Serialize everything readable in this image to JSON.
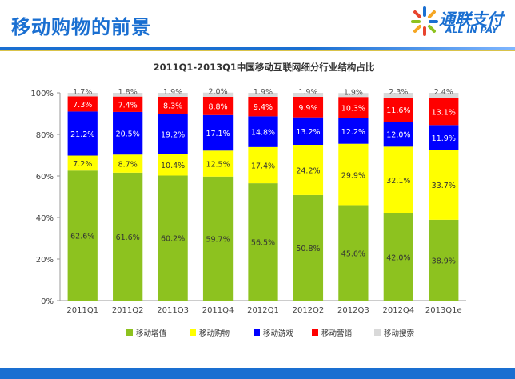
{
  "header": {
    "title": "移动购物的前景",
    "logo_cn": "通联支付",
    "logo_en": "ALL IN PAY"
  },
  "colors": {
    "brand": "#1a6fd1",
    "series": [
      "#8dc21f",
      "#ffff00",
      "#0000ff",
      "#ff0000",
      "#d9d9d9"
    ]
  },
  "chart_data": {
    "type": "bar",
    "stacked": true,
    "title": "2011Q1-2013Q1中国移动互联网细分行业结构占比",
    "categories": [
      "2011Q1",
      "2011Q2",
      "2011Q3",
      "2011Q4",
      "2012Q1",
      "2012Q2",
      "2012Q3",
      "2012Q4",
      "2013Q1e"
    ],
    "series": [
      {
        "name": "移动增值",
        "values": [
          62.6,
          61.6,
          60.2,
          59.7,
          56.5,
          50.8,
          45.6,
          42.0,
          38.9
        ],
        "labels": [
          "62.6%",
          "61.6%",
          "60.2%",
          "59.7%",
          "56.5%",
          "50.8%",
          "45.6%",
          "42.0%",
          "38.9%"
        ]
      },
      {
        "name": "移动购物",
        "values": [
          7.2,
          8.7,
          10.4,
          12.5,
          17.4,
          24.2,
          29.9,
          32.1,
          33.7
        ],
        "labels": [
          "7.2%",
          "8.7%",
          "10.4%",
          "12.5%",
          "17.4%",
          "24.2%",
          "29.9%",
          "32.1%",
          "33.7%"
        ]
      },
      {
        "name": "移动游戏",
        "values": [
          21.2,
          20.5,
          19.2,
          17.1,
          14.8,
          13.2,
          12.2,
          12.0,
          11.9
        ],
        "labels": [
          "21.2%",
          "20.5%",
          "19.2%",
          "17.1%",
          "14.8%",
          "13.2%",
          "12.2%",
          "12.0%",
          "11.9%"
        ]
      },
      {
        "name": "移动营销",
        "values": [
          7.3,
          7.4,
          8.3,
          8.8,
          9.4,
          9.9,
          10.3,
          11.6,
          13.1
        ],
        "labels": [
          "7.3%",
          "7.4%",
          "8.3%",
          "8.8%",
          "9.4%",
          "9.9%",
          "10.3%",
          "11.6%",
          "13.1%"
        ]
      },
      {
        "name": "移动搜索",
        "values": [
          1.7,
          1.8,
          1.9,
          2.0,
          1.9,
          1.9,
          1.9,
          2.3,
          2.4
        ],
        "labels": [
          "1.7%",
          "1.8%",
          "1.9%",
          "2.0%",
          "1.9%",
          "1.9%",
          "1.9%",
          "2.3%",
          "2.4%"
        ]
      }
    ],
    "ylim": [
      0,
      100
    ],
    "yticks": [
      "0%",
      "20%",
      "40%",
      "60%",
      "80%",
      "100%"
    ],
    "grid": false,
    "legend_position": "bottom"
  }
}
